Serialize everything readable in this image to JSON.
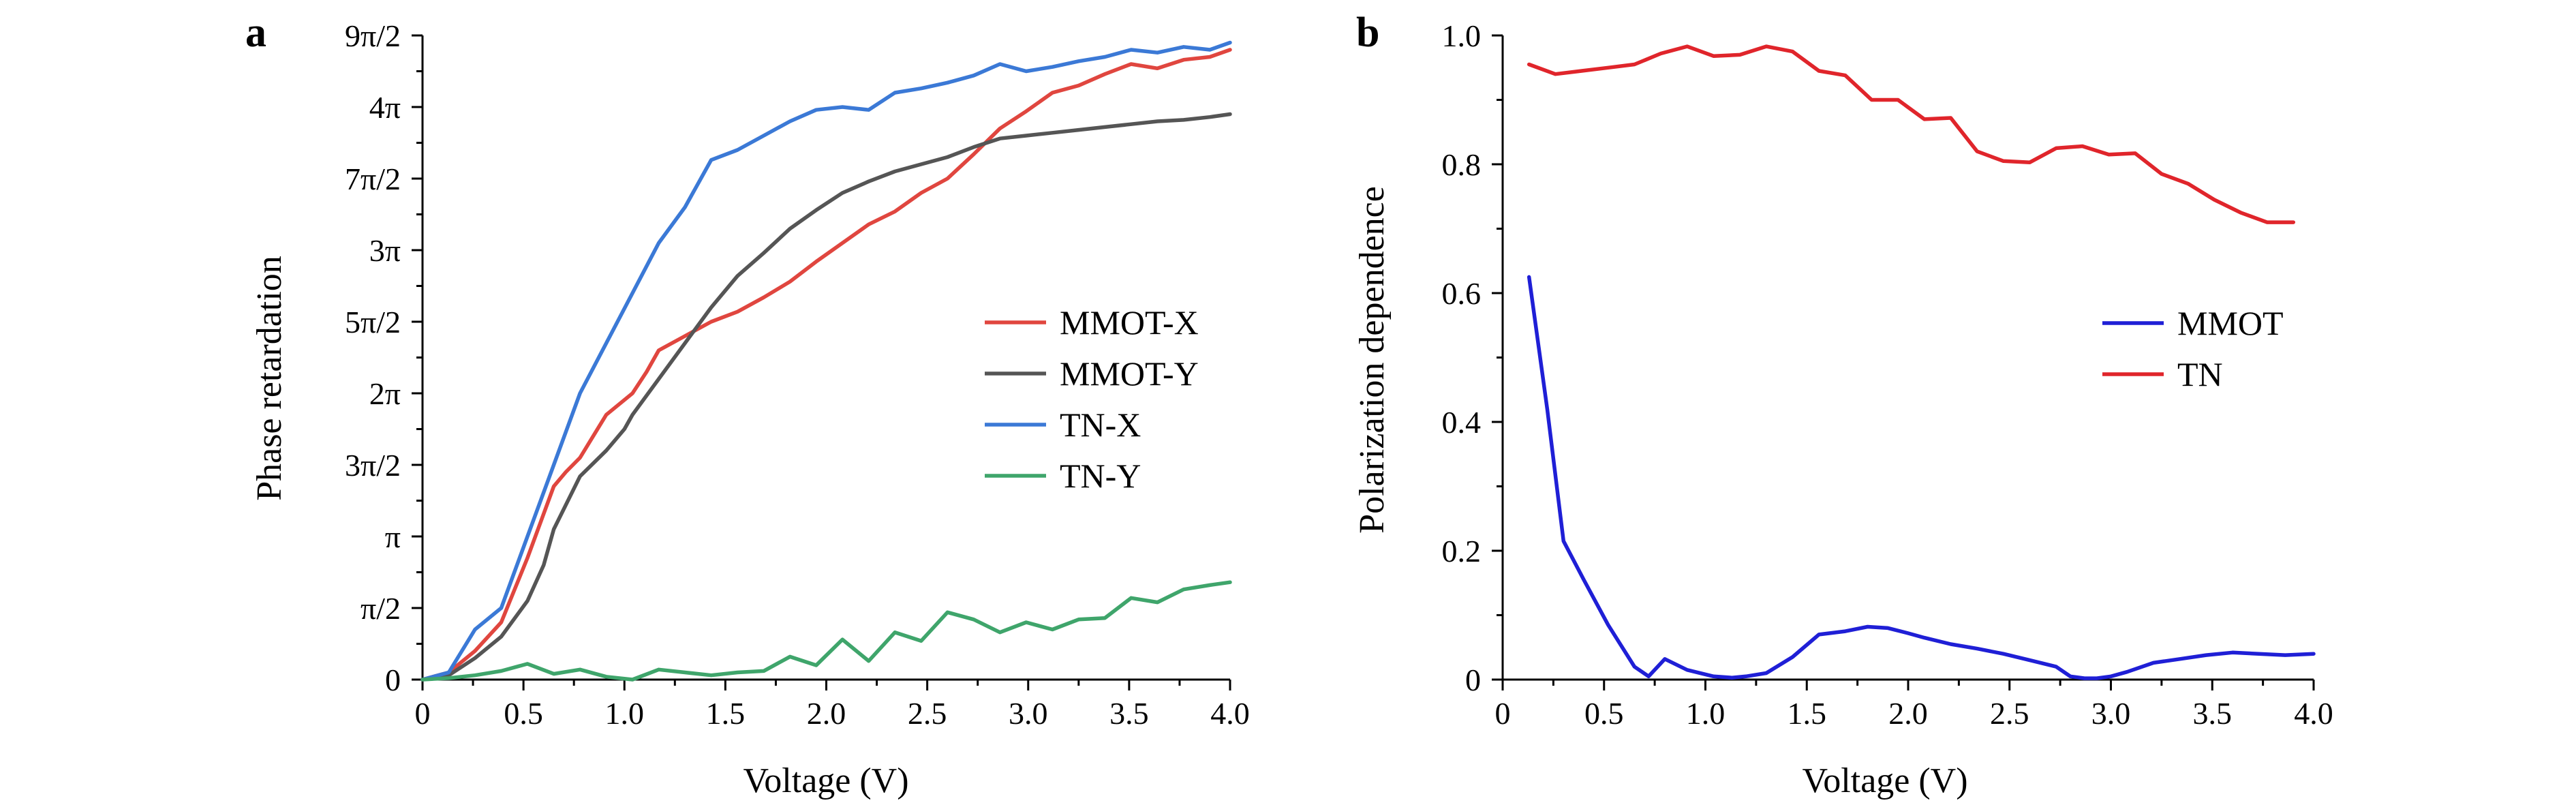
{
  "chart_data": [
    {
      "type": "line",
      "panel_label": "a",
      "xlabel": "Voltage (V)",
      "ylabel": "Phase retardation",
      "xlim": [
        0,
        4.0
      ],
      "ylim": [
        0,
        4.5
      ],
      "y_unit": "π",
      "xticks": [
        0,
        0.5,
        1.0,
        1.5,
        2.0,
        2.5,
        3.0,
        3.5,
        4.0
      ],
      "xtick_labels": [
        "0",
        "0.5",
        "1.0",
        "1.5",
        "2.0",
        "2.5",
        "3.0",
        "3.5",
        "4.0"
      ],
      "yticks": [
        0,
        0.5,
        1,
        1.5,
        2,
        2.5,
        3,
        3.5,
        4,
        4.5
      ],
      "ytick_labels": [
        "0",
        "π/2",
        "π",
        "3π/2",
        "2π",
        "5π/2",
        "3π",
        "7π/2",
        "4π",
        "9π/2"
      ],
      "grid": false,
      "legend_position": "center-right",
      "series": [
        {
          "name": "MMOT-X",
          "color": "#e0463f",
          "x": [
            0,
            0.13,
            0.26,
            0.39,
            0.52,
            0.65,
            0.71,
            0.78,
            0.91,
            1.04,
            1.11,
            1.17,
            1.3,
            1.43,
            1.56,
            1.69,
            1.82,
            1.95,
            2.08,
            2.21,
            2.34,
            2.47,
            2.6,
            2.73,
            2.86,
            2.99,
            3.12,
            3.25,
            3.38,
            3.51,
            3.64,
            3.77,
            3.9,
            4.0
          ],
          "values": [
            0,
            0.05,
            0.2,
            0.4,
            0.85,
            1.35,
            1.45,
            1.55,
            1.85,
            2.0,
            2.15,
            2.3,
            2.4,
            2.5,
            2.57,
            2.67,
            2.78,
            2.92,
            3.05,
            3.18,
            3.27,
            3.4,
            3.5,
            3.67,
            3.85,
            3.97,
            4.1,
            4.15,
            4.23,
            4.3,
            4.27,
            4.33,
            4.35,
            4.4
          ]
        },
        {
          "name": "MMOT-Y",
          "color": "#555555",
          "x": [
            0,
            0.13,
            0.26,
            0.39,
            0.52,
            0.6,
            0.65,
            0.78,
            0.91,
            1.0,
            1.04,
            1.17,
            1.3,
            1.43,
            1.56,
            1.69,
            1.82,
            1.95,
            2.08,
            2.21,
            2.34,
            2.47,
            2.6,
            2.73,
            2.86,
            2.99,
            3.12,
            3.25,
            3.38,
            3.51,
            3.64,
            3.77,
            3.9,
            4.0
          ],
          "values": [
            0,
            0.03,
            0.15,
            0.3,
            0.55,
            0.8,
            1.05,
            1.42,
            1.6,
            1.75,
            1.85,
            2.1,
            2.35,
            2.6,
            2.82,
            2.98,
            3.15,
            3.28,
            3.4,
            3.48,
            3.55,
            3.6,
            3.65,
            3.72,
            3.78,
            3.8,
            3.82,
            3.84,
            3.86,
            3.88,
            3.9,
            3.91,
            3.93,
            3.95
          ]
        },
        {
          "name": "TN-X",
          "color": "#3b79d6",
          "x": [
            0,
            0.13,
            0.26,
            0.39,
            0.52,
            0.65,
            0.78,
            0.91,
            1.04,
            1.17,
            1.3,
            1.43,
            1.56,
            1.69,
            1.82,
            1.95,
            2.08,
            2.21,
            2.34,
            2.47,
            2.6,
            2.73,
            2.86,
            2.99,
            3.12,
            3.25,
            3.38,
            3.51,
            3.64,
            3.77,
            3.9,
            4.0
          ],
          "values": [
            0,
            0.05,
            0.35,
            0.5,
            1.0,
            1.5,
            2.0,
            2.35,
            2.7,
            3.05,
            3.3,
            3.63,
            3.7,
            3.8,
            3.9,
            3.98,
            4.0,
            3.98,
            4.1,
            4.13,
            4.17,
            4.22,
            4.3,
            4.25,
            4.28,
            4.32,
            4.35,
            4.4,
            4.38,
            4.42,
            4.4,
            4.45
          ]
        },
        {
          "name": "TN-Y",
          "color": "#3fa56b",
          "x": [
            0,
            0.13,
            0.26,
            0.39,
            0.52,
            0.65,
            0.78,
            0.91,
            1.04,
            1.17,
            1.3,
            1.43,
            1.56,
            1.69,
            1.82,
            1.95,
            2.08,
            2.21,
            2.34,
            2.47,
            2.6,
            2.73,
            2.86,
            2.99,
            3.12,
            3.25,
            3.38,
            3.51,
            3.64,
            3.77,
            3.9,
            4.0
          ],
          "values": [
            0,
            0.01,
            0.03,
            0.06,
            0.11,
            0.04,
            0.07,
            0.02,
            0.0,
            0.07,
            0.05,
            0.03,
            0.05,
            0.06,
            0.16,
            0.1,
            0.28,
            0.13,
            0.33,
            0.27,
            0.47,
            0.42,
            0.33,
            0.4,
            0.35,
            0.42,
            0.43,
            0.57,
            0.54,
            0.63,
            0.66,
            0.68
          ]
        }
      ]
    },
    {
      "type": "line",
      "panel_label": "b",
      "xlabel": "Voltage (V)",
      "ylabel": "Polarization dependence",
      "xlim": [
        0,
        4.0
      ],
      "ylim": [
        0,
        1.0
      ],
      "xticks": [
        0,
        0.5,
        1.0,
        1.5,
        2.0,
        2.5,
        3.0,
        3.5,
        4.0
      ],
      "xtick_labels": [
        "0",
        "0.5",
        "1.0",
        "1.5",
        "2.0",
        "2.5",
        "3.0",
        "3.5",
        "4.0"
      ],
      "yticks": [
        0,
        0.2,
        0.4,
        0.6,
        0.8,
        1.0
      ],
      "ytick_labels": [
        "0",
        "0.2",
        "0.4",
        "0.6",
        "0.8",
        "1.0"
      ],
      "grid": false,
      "legend_position": "center-right",
      "series": [
        {
          "name": "MMOT",
          "color": "#1f1fd6",
          "x": [
            0.13,
            0.22,
            0.3,
            0.4,
            0.52,
            0.65,
            0.72,
            0.8,
            0.91,
            1.04,
            1.13,
            1.2,
            1.3,
            1.43,
            1.56,
            1.69,
            1.8,
            1.9,
            2.0,
            2.08,
            2.21,
            2.34,
            2.47,
            2.6,
            2.73,
            2.8,
            2.87,
            2.93,
            3.0,
            3.08,
            3.21,
            3.34,
            3.47,
            3.6,
            3.73,
            3.86,
            4.0
          ],
          "values": [
            0.625,
            0.42,
            0.215,
            0.155,
            0.085,
            0.02,
            0.005,
            0.032,
            0.015,
            0.005,
            0.003,
            0.005,
            0.01,
            0.035,
            0.07,
            0.075,
            0.082,
            0.08,
            0.072,
            0.065,
            0.055,
            0.048,
            0.04,
            0.03,
            0.02,
            0.005,
            0.002,
            0.002,
            0.005,
            0.012,
            0.026,
            0.032,
            0.038,
            0.042,
            0.04,
            0.038,
            0.04
          ]
        },
        {
          "name": "TN",
          "color": "#e0252b",
          "x": [
            0.13,
            0.26,
            0.39,
            0.52,
            0.65,
            0.78,
            0.91,
            1.04,
            1.17,
            1.3,
            1.43,
            1.56,
            1.69,
            1.82,
            1.95,
            2.08,
            2.21,
            2.34,
            2.47,
            2.6,
            2.73,
            2.86,
            2.99,
            3.12,
            3.25,
            3.38,
            3.51,
            3.64,
            3.77,
            3.9
          ],
          "values": [
            0.955,
            0.94,
            0.945,
            0.95,
            0.955,
            0.972,
            0.983,
            0.968,
            0.97,
            0.983,
            0.975,
            0.945,
            0.938,
            0.9,
            0.9,
            0.87,
            0.872,
            0.82,
            0.805,
            0.803,
            0.825,
            0.828,
            0.815,
            0.817,
            0.785,
            0.77,
            0.745,
            0.725,
            0.71,
            0.71
          ]
        }
      ]
    }
  ]
}
